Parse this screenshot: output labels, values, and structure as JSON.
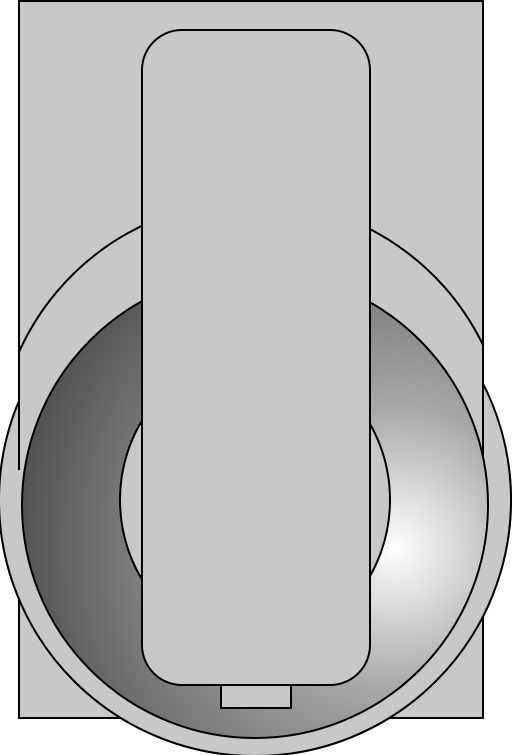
{
  "colors": {
    "background": "#ffffff",
    "panel_fill": "#c8c8c8",
    "outline": "#000000",
    "handle_fill": "#c8c8c8",
    "ring_fill": "#c8c8c8",
    "dish_highlight": "#ffffff",
    "dish_mid": "#a8a8a8",
    "dish_shadow": "#3c3c3c"
  },
  "icons": {
    "panel": "rectangular-mounting-plate",
    "bezel": "circular-bezel-ring",
    "dish": "shaded-concave-dish",
    "hub": "center-hub-circle",
    "handle": "rotary-switch-handle",
    "tab": "handle-bottom-tab"
  }
}
